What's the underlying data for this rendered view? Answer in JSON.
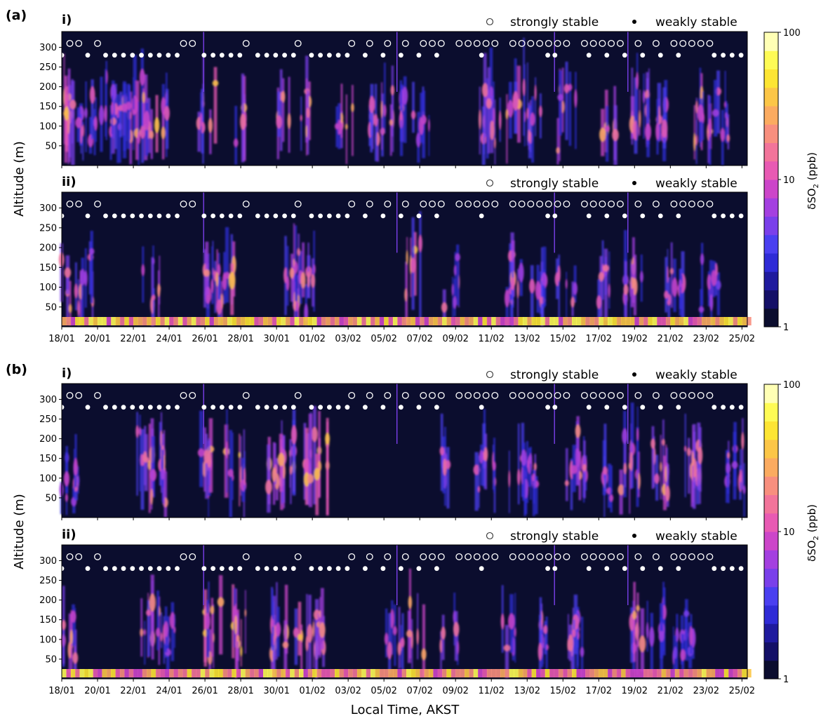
{
  "figure": {
    "xlabel": "Local Time, AKST",
    "ylabel": "Altitude (m)",
    "colorbar_label": "δSO₂ (ppb)",
    "colorbar_label_base": "δSO",
    "colorbar_label_sub": "2",
    "colorbar_label_unit": " (ppb)",
    "legend": {
      "open": "strongly stable",
      "filled": "weakly stable"
    }
  },
  "chart_data": {
    "type": "heatmap",
    "x_ticks": [
      "18/01",
      "20/01",
      "22/01",
      "24/01",
      "26/01",
      "28/01",
      "30/01",
      "01/02",
      "03/02",
      "05/02",
      "07/02",
      "09/02",
      "11/02",
      "13/02",
      "15/02",
      "17/02",
      "19/02",
      "21/02",
      "23/02",
      "25/02"
    ],
    "x_range_days": [
      0,
      38.3
    ],
    "y_ticks": [
      50,
      100,
      150,
      200,
      250,
      300
    ],
    "ylim": [
      0,
      340
    ],
    "color_scale": "log",
    "color_range": [
      1,
      100
    ],
    "color_ticks": [
      "1",
      "10",
      "100"
    ],
    "colormap": [
      "#0b0d2e",
      "#141067",
      "#1f1a9e",
      "#2f2bd6",
      "#4a3ff0",
      "#7a3fea",
      "#a43fe0",
      "#cc45c9",
      "#e85ab3",
      "#f2749a",
      "#f88f7e",
      "#fbab60",
      "#fcc647",
      "#fde533",
      "#fefb55",
      "#ffffb5"
    ],
    "stability": {
      "strongly_stable_day": [
        0.45,
        0.95,
        2.0,
        6.8,
        7.3,
        10.3,
        13.2,
        16.2,
        17.2,
        18.2,
        19.2,
        20.2,
        20.7,
        21.2,
        22.2,
        22.7,
        23.2,
        23.7,
        24.2,
        25.2,
        25.7,
        26.2,
        26.7,
        27.2,
        27.7,
        28.2,
        29.2,
        29.7,
        30.2,
        30.7,
        31.2,
        32.2,
        33.2,
        34.2,
        34.7,
        35.2,
        35.7,
        36.2
      ],
      "weakly_stable_day": [
        0,
        1.45,
        2.45,
        2.95,
        3.45,
        3.95,
        4.45,
        4.95,
        5.45,
        5.95,
        6.45,
        7.95,
        8.45,
        8.95,
        9.45,
        9.95,
        10.95,
        11.45,
        11.95,
        12.45,
        12.95,
        13.95,
        14.45,
        14.95,
        15.45,
        15.95,
        16.95,
        17.95,
        18.95,
        19.95,
        20.95,
        23.45,
        27.15,
        27.55,
        29.45,
        30.45,
        31.45,
        32.45,
        33.45,
        34.45,
        36.45,
        36.95,
        37.45,
        37.95
      ],
      "strongly_stable_altitude_m": 310,
      "weakly_stable_altitude_m": 280
    },
    "panels": [
      {
        "id": "a",
        "label": "(a)",
        "sub": "i)"
      },
      {
        "id": "a",
        "label": "",
        "sub": "ii)"
      },
      {
        "id": "b",
        "label": "(b)",
        "sub": "i)"
      },
      {
        "id": "b",
        "label": "",
        "sub": "ii)"
      }
    ]
  }
}
